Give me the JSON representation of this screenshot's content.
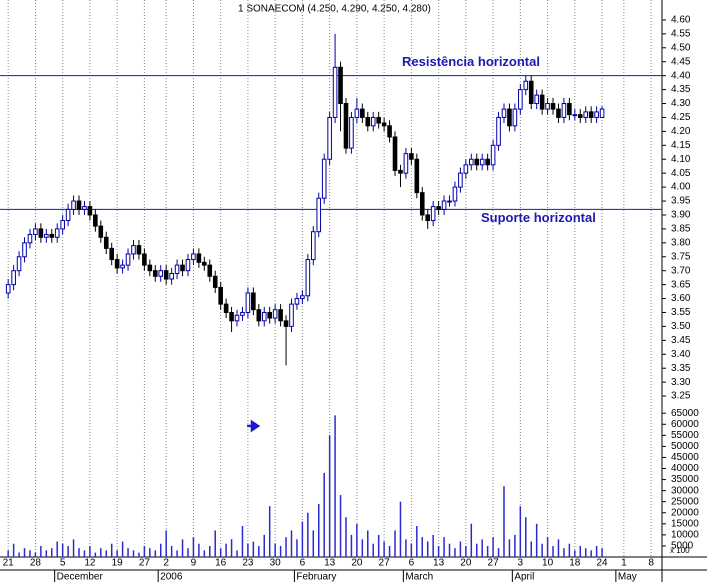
{
  "chart_data": {
    "type": "candlestick",
    "title": "1 SONAECOM (4.250, 4.290, 4.250, 4.280)",
    "x": [
      0,
      1,
      2,
      3,
      4,
      5,
      6,
      7,
      8,
      9,
      10,
      11,
      12,
      13,
      14,
      15,
      16,
      17,
      18,
      19,
      20,
      21,
      22,
      23,
      24,
      25,
      26,
      27,
      28,
      29,
      30,
      31,
      32,
      33,
      34,
      35,
      36,
      37,
      38,
      39,
      40,
      41,
      42,
      43,
      44,
      45,
      46,
      47,
      48,
      49,
      50,
      51,
      52,
      53,
      54,
      55,
      56,
      57,
      58,
      59,
      60,
      61,
      62,
      63,
      64,
      65,
      66,
      67,
      68,
      69,
      70,
      71,
      72,
      73,
      74,
      75,
      76,
      77,
      78,
      79,
      80,
      81,
      82,
      83,
      84,
      85,
      86,
      87,
      88,
      89,
      90,
      91,
      92,
      93,
      94,
      95,
      96,
      97,
      98,
      99,
      100,
      101,
      102,
      103,
      104,
      105,
      106,
      107,
      108,
      109
    ],
    "open": [
      3.62,
      3.65,
      3.7,
      3.75,
      3.8,
      3.83,
      3.85,
      3.82,
      3.83,
      3.82,
      3.85,
      3.88,
      3.92,
      3.95,
      3.92,
      3.93,
      3.9,
      3.86,
      3.82,
      3.78,
      3.74,
      3.71,
      3.72,
      3.76,
      3.79,
      3.76,
      3.72,
      3.7,
      3.68,
      3.7,
      3.67,
      3.69,
      3.72,
      3.7,
      3.74,
      3.76,
      3.73,
      3.72,
      3.68,
      3.64,
      3.58,
      3.55,
      3.52,
      3.54,
      3.55,
      3.62,
      3.56,
      3.52,
      3.55,
      3.53,
      3.56,
      3.52,
      3.5,
      3.58,
      3.6,
      3.61,
      3.74,
      3.84,
      3.96,
      4.1,
      4.25,
      4.43,
      4.3,
      4.14,
      4.25,
      4.28,
      4.25,
      4.22,
      4.25,
      4.23,
      4.22,
      4.18,
      4.06,
      4.05,
      4.12,
      4.1,
      3.98,
      3.9,
      3.88,
      3.93,
      3.92,
      3.95,
      3.95,
      4.0,
      4.05,
      4.08,
      4.1,
      4.08,
      4.1,
      4.08,
      4.15,
      4.25,
      4.28,
      4.22,
      4.28,
      4.35,
      4.38,
      4.3,
      4.33,
      4.28,
      4.3,
      4.28,
      4.25,
      4.3,
      4.26,
      4.26,
      4.25,
      4.27,
      4.25,
      4.25
    ],
    "high": [
      3.67,
      3.72,
      3.77,
      3.82,
      3.85,
      3.87,
      3.87,
      3.85,
      3.85,
      3.87,
      3.9,
      3.94,
      3.97,
      3.97,
      3.95,
      3.95,
      3.92,
      3.88,
      3.84,
      3.8,
      3.76,
      3.74,
      3.78,
      3.81,
      3.81,
      3.78,
      3.74,
      3.72,
      3.72,
      3.72,
      3.71,
      3.74,
      3.74,
      3.76,
      3.78,
      3.78,
      3.75,
      3.74,
      3.7,
      3.66,
      3.6,
      3.57,
      3.56,
      3.57,
      3.64,
      3.64,
      3.58,
      3.57,
      3.57,
      3.58,
      3.58,
      3.54,
      3.6,
      3.62,
      3.63,
      3.76,
      3.86,
      3.98,
      4.12,
      4.27,
      4.55,
      4.45,
      4.32,
      4.27,
      4.32,
      4.3,
      4.27,
      4.27,
      4.27,
      4.25,
      4.24,
      4.2,
      4.08,
      4.14,
      4.14,
      4.12,
      4.0,
      3.92,
      3.95,
      3.95,
      3.97,
      3.97,
      4.02,
      4.07,
      4.1,
      4.12,
      4.12,
      4.12,
      4.12,
      4.17,
      4.27,
      4.3,
      4.3,
      4.3,
      4.37,
      4.4,
      4.4,
      4.35,
      4.35,
      4.32,
      4.32,
      4.3,
      4.32,
      4.32,
      4.28,
      4.28,
      4.29,
      4.29,
      4.29,
      4.29
    ],
    "low": [
      3.6,
      3.63,
      3.68,
      3.73,
      3.78,
      3.81,
      3.8,
      3.8,
      3.8,
      3.8,
      3.83,
      3.86,
      3.9,
      3.9,
      3.9,
      3.88,
      3.84,
      3.8,
      3.76,
      3.72,
      3.69,
      3.69,
      3.7,
      3.74,
      3.74,
      3.7,
      3.68,
      3.66,
      3.66,
      3.65,
      3.65,
      3.67,
      3.68,
      3.68,
      3.72,
      3.71,
      3.7,
      3.66,
      3.62,
      3.56,
      3.53,
      3.48,
      3.5,
      3.52,
      3.53,
      3.54,
      3.5,
      3.5,
      3.51,
      3.51,
      3.5,
      3.36,
      3.48,
      3.56,
      3.58,
      3.59,
      3.72,
      3.82,
      3.94,
      4.08,
      4.23,
      4.2,
      4.12,
      4.12,
      4.23,
      4.23,
      4.2,
      4.2,
      4.21,
      4.2,
      4.16,
      4.04,
      4.0,
      4.03,
      4.08,
      3.96,
      3.88,
      3.85,
      3.86,
      3.9,
      3.9,
      3.93,
      3.93,
      3.98,
      4.03,
      4.06,
      4.06,
      4.06,
      4.06,
      4.06,
      4.13,
      4.23,
      4.2,
      4.2,
      4.26,
      4.33,
      4.28,
      4.28,
      4.26,
      4.26,
      4.26,
      4.23,
      4.23,
      4.24,
      4.24,
      4.23,
      4.23,
      4.23,
      4.23,
      4.25
    ],
    "close": [
      3.65,
      3.7,
      3.75,
      3.8,
      3.83,
      3.85,
      3.82,
      3.83,
      3.82,
      3.85,
      3.88,
      3.92,
      3.95,
      3.92,
      3.93,
      3.9,
      3.86,
      3.82,
      3.78,
      3.74,
      3.71,
      3.72,
      3.76,
      3.79,
      3.76,
      3.72,
      3.7,
      3.68,
      3.7,
      3.67,
      3.69,
      3.72,
      3.7,
      3.74,
      3.76,
      3.73,
      3.72,
      3.68,
      3.64,
      3.58,
      3.55,
      3.52,
      3.54,
      3.55,
      3.62,
      3.56,
      3.52,
      3.55,
      3.53,
      3.56,
      3.52,
      3.5,
      3.58,
      3.6,
      3.61,
      3.74,
      3.84,
      3.96,
      4.1,
      4.25,
      4.43,
      4.3,
      4.14,
      4.25,
      4.28,
      4.25,
      4.22,
      4.25,
      4.23,
      4.22,
      4.18,
      4.06,
      4.05,
      4.12,
      4.1,
      3.98,
      3.9,
      3.88,
      3.93,
      3.92,
      3.95,
      3.95,
      4.0,
      4.05,
      4.08,
      4.1,
      4.08,
      4.1,
      4.08,
      4.15,
      4.25,
      4.28,
      4.22,
      4.28,
      4.35,
      4.38,
      4.3,
      4.33,
      4.28,
      4.3,
      4.28,
      4.25,
      4.3,
      4.26,
      4.26,
      4.25,
      4.27,
      4.25,
      4.27,
      4.28
    ],
    "volume": [
      3000,
      6000,
      2000,
      4000,
      3000,
      2000,
      5000,
      3000,
      4000,
      7000,
      6000,
      5000,
      8000,
      4000,
      3000,
      5000,
      2000,
      4000,
      3000,
      6000,
      3000,
      7000,
      4000,
      3000,
      2000,
      5000,
      4000,
      3000,
      6000,
      12000,
      5000,
      3000,
      8000,
      4000,
      9000,
      6000,
      3000,
      5000,
      12000,
      4000,
      6000,
      8000,
      3000,
      14000,
      6000,
      7000,
      5000,
      10000,
      23000,
      6000,
      5000,
      9000,
      12000,
      8000,
      16000,
      20000,
      12000,
      24000,
      38000,
      55000,
      64000,
      28000,
      18000,
      10000,
      15000,
      8000,
      12000,
      6000,
      10000,
      7000,
      5000,
      12000,
      25000,
      8000,
      6000,
      14000,
      9000,
      7000,
      10000,
      5000,
      9000,
      6000,
      4000,
      7000,
      5000,
      15000,
      6000,
      8000,
      5000,
      9000,
      4000,
      32000,
      8000,
      10000,
      23000,
      18000,
      7000,
      15000,
      6000,
      9000,
      5000,
      8000,
      4000,
      6000,
      3000,
      5000,
      4000,
      3000,
      5000,
      4000
    ],
    "up_color": "#0000aa",
    "down_color": "#000000",
    "volume_color": "#2a2ad0",
    "line_color": "#1a1ab0",
    "xlim": [
      -1.5,
      120
    ],
    "xticks": [
      {
        "value": 0,
        "label": "21"
      },
      {
        "value": 5,
        "label": "28"
      },
      {
        "value": 10,
        "label": "5"
      },
      {
        "value": 15,
        "label": "12"
      },
      {
        "value": 20,
        "label": "19"
      },
      {
        "value": 25,
        "label": "27"
      },
      {
        "value": 29,
        "label": "2"
      },
      {
        "value": 34,
        "label": "9"
      },
      {
        "value": 39,
        "label": "16"
      },
      {
        "value": 44,
        "label": "23"
      },
      {
        "value": 49,
        "label": "30"
      },
      {
        "value": 54,
        "label": "6"
      },
      {
        "value": 59,
        "label": "13"
      },
      {
        "value": 64,
        "label": "20"
      },
      {
        "value": 69,
        "label": "27"
      },
      {
        "value": 74,
        "label": "6"
      },
      {
        "value": 79,
        "label": "13"
      },
      {
        "value": 84,
        "label": "20"
      },
      {
        "value": 89,
        "label": "27"
      },
      {
        "value": 94,
        "label": "3"
      },
      {
        "value": 99,
        "label": "10"
      },
      {
        "value": 104,
        "label": "18"
      },
      {
        "value": 109,
        "label": "24"
      },
      {
        "value": 113,
        "label": "1"
      },
      {
        "value": 118,
        "label": "8"
      }
    ],
    "month_ticks": [
      {
        "value": 10,
        "label": "December"
      },
      {
        "value": 29,
        "label": "2006"
      },
      {
        "value": 54,
        "label": "February"
      },
      {
        "value": 74,
        "label": "March"
      },
      {
        "value": 94,
        "label": "April"
      },
      {
        "value": 113,
        "label": "May"
      }
    ],
    "ylim": [
      3.2,
      4.65
    ],
    "yticks": [
      3.25,
      {
        "value": 3.3,
        "label": "3.30"
      },
      3.35,
      {
        "value": 3.4,
        "label": "3.40"
      },
      3.45,
      {
        "value": 3.5,
        "label": "3.50"
      },
      3.55,
      {
        "value": 3.6,
        "label": "3.60"
      },
      3.65,
      {
        "value": 3.7,
        "label": "3.70"
      },
      3.75,
      {
        "value": 3.8,
        "label": "3.80"
      },
      3.85,
      {
        "value": 3.9,
        "label": "3.90"
      },
      3.95,
      {
        "value": 4.0,
        "label": "4.00"
      },
      4.05,
      {
        "value": 4.1,
        "label": "4.10"
      },
      4.15,
      {
        "value": 4.2,
        "label": "4.20"
      },
      4.25,
      {
        "value": 4.3,
        "label": "4.30"
      },
      4.35,
      {
        "value": 4.4,
        "label": "4.40"
      },
      4.45,
      {
        "value": 4.5,
        "label": "4.50"
      },
      4.55,
      {
        "value": 4.6,
        "label": "4.60"
      }
    ],
    "volume_ylim": [
      0,
      66000
    ],
    "volume_yticks": [
      5000,
      10000,
      15000,
      20000,
      25000,
      30000,
      35000,
      40000,
      45000,
      50000,
      55000,
      60000,
      65000
    ],
    "volume_unit": "x 100",
    "grid": true,
    "lines": [
      {
        "label": "Resistência horizontal",
        "value": 4.4
      },
      {
        "label": "Suporte horizontal",
        "value": 3.92
      }
    ]
  }
}
